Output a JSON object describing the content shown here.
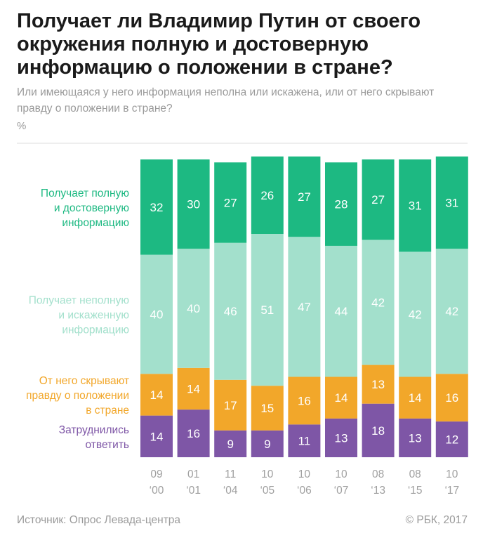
{
  "title": "Получает ли Владимир Путин от своего окружения полную и достоверную информацию о положении в стране?",
  "subtitle": "Или имеющаяся у него информация неполна или искажена, или от него скрывают правду о положении в стране?",
  "unit": "%",
  "source": "Источник: Опрос Левада-центра",
  "copyright": "© РБК, 2017",
  "colors": {
    "full": "#1db982",
    "incomplete": "#a3e0cc",
    "hidden": "#f2a72a",
    "undecided": "#7e56a6",
    "axis_text": "#a0a0a0",
    "grid": "#dddddd"
  },
  "chart_data": {
    "type": "bar",
    "stacked": true,
    "percent": true,
    "categories": [
      "09 ‘00",
      "01 ‘01",
      "11 ‘04",
      "10 ‘05",
      "10 ‘06",
      "10 ‘07",
      "08 ‘13",
      "08 ‘15",
      "10 ‘17"
    ],
    "category_lines": [
      [
        "09",
        "‘00"
      ],
      [
        "01",
        "‘01"
      ],
      [
        "11",
        "‘04"
      ],
      [
        "10",
        "‘05"
      ],
      [
        "10",
        "‘06"
      ],
      [
        "10",
        "‘07"
      ],
      [
        "08",
        "‘13"
      ],
      [
        "08",
        "‘15"
      ],
      [
        "10",
        "‘17"
      ]
    ],
    "series": [
      {
        "key": "undecided",
        "name": "Затруднились ответить",
        "label_lines": [
          "Затруднились",
          "ответить"
        ],
        "values": [
          14,
          16,
          9,
          9,
          11,
          13,
          18,
          13,
          12
        ]
      },
      {
        "key": "hidden",
        "name": "От него скрывают правду о положении в стране",
        "label_lines": [
          "От него скрывают",
          "правду о положении",
          "в стране"
        ],
        "values": [
          14,
          14,
          17,
          15,
          16,
          14,
          13,
          14,
          16
        ]
      },
      {
        "key": "incomplete",
        "name": "Получает неполную и искаженную информацию",
        "label_lines": [
          "Получает неполную",
          "и искаженную",
          "информацию"
        ],
        "values": [
          40,
          40,
          46,
          51,
          47,
          44,
          42,
          42,
          42
        ]
      },
      {
        "key": "full",
        "name": "Получает полную и достоверную информацию",
        "label_lines": [
          "Получает полную",
          "и достоверную",
          "информацию"
        ],
        "values": [
          32,
          30,
          27,
          26,
          27,
          28,
          27,
          31,
          31
        ]
      }
    ],
    "ylim": [
      0,
      100
    ],
    "xlabel": "",
    "ylabel": "%"
  }
}
